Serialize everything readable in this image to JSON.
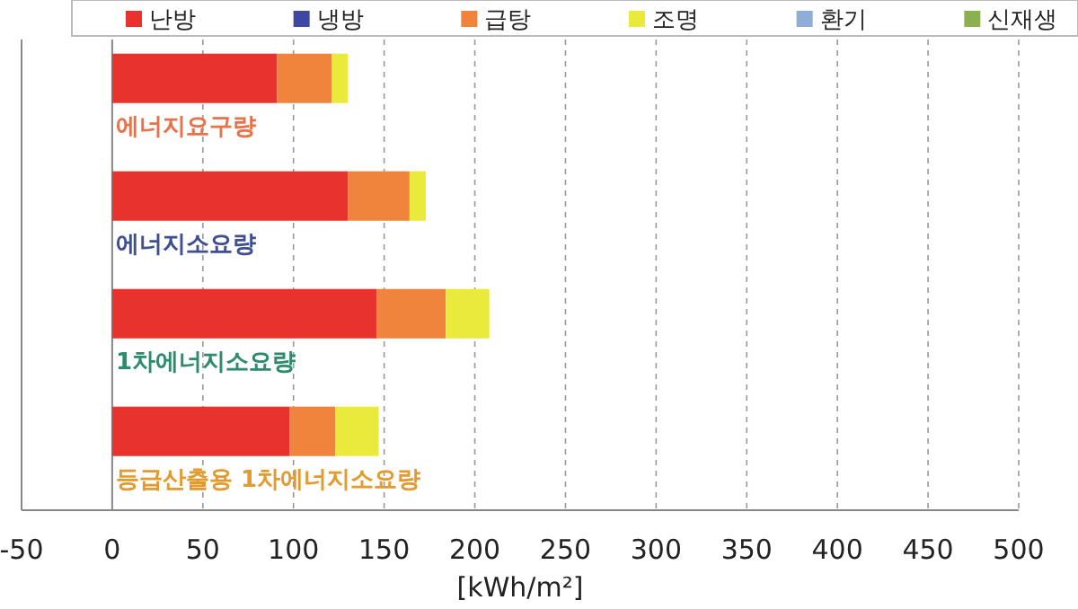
{
  "chart_data": {
    "type": "bar",
    "orientation": "horizontal",
    "stacked": true,
    "xlabel": "[kWh/m²]",
    "categories": [
      "에너지요구량",
      "에너지소요량",
      "1차에너지소요량",
      "등급산출용 1차에너지소요량"
    ],
    "series": [
      {
        "name": "난방",
        "color": "#e8322d",
        "values": [
          91,
          130,
          146,
          98
        ]
      },
      {
        "name": "냉방",
        "color": "#3f48a0",
        "values": [
          0,
          0,
          0,
          0
        ]
      },
      {
        "name": "급탕",
        "color": "#f0843c",
        "values": [
          30,
          34,
          38,
          25
        ]
      },
      {
        "name": "조명",
        "color": "#eaea3c",
        "values": [
          9,
          9,
          24,
          24
        ]
      },
      {
        "name": "환기",
        "color": "#8eaed6",
        "values": [
          0,
          0,
          0,
          0
        ]
      },
      {
        "name": "신재생",
        "color": "#8cb050",
        "values": [
          0,
          0,
          0,
          0
        ]
      }
    ],
    "xlim": [
      -50,
      500
    ],
    "xticks": [
      -50,
      0,
      50,
      100,
      150,
      200,
      250,
      300,
      350,
      400,
      450,
      500
    ],
    "grid": "x",
    "legend": "top"
  }
}
